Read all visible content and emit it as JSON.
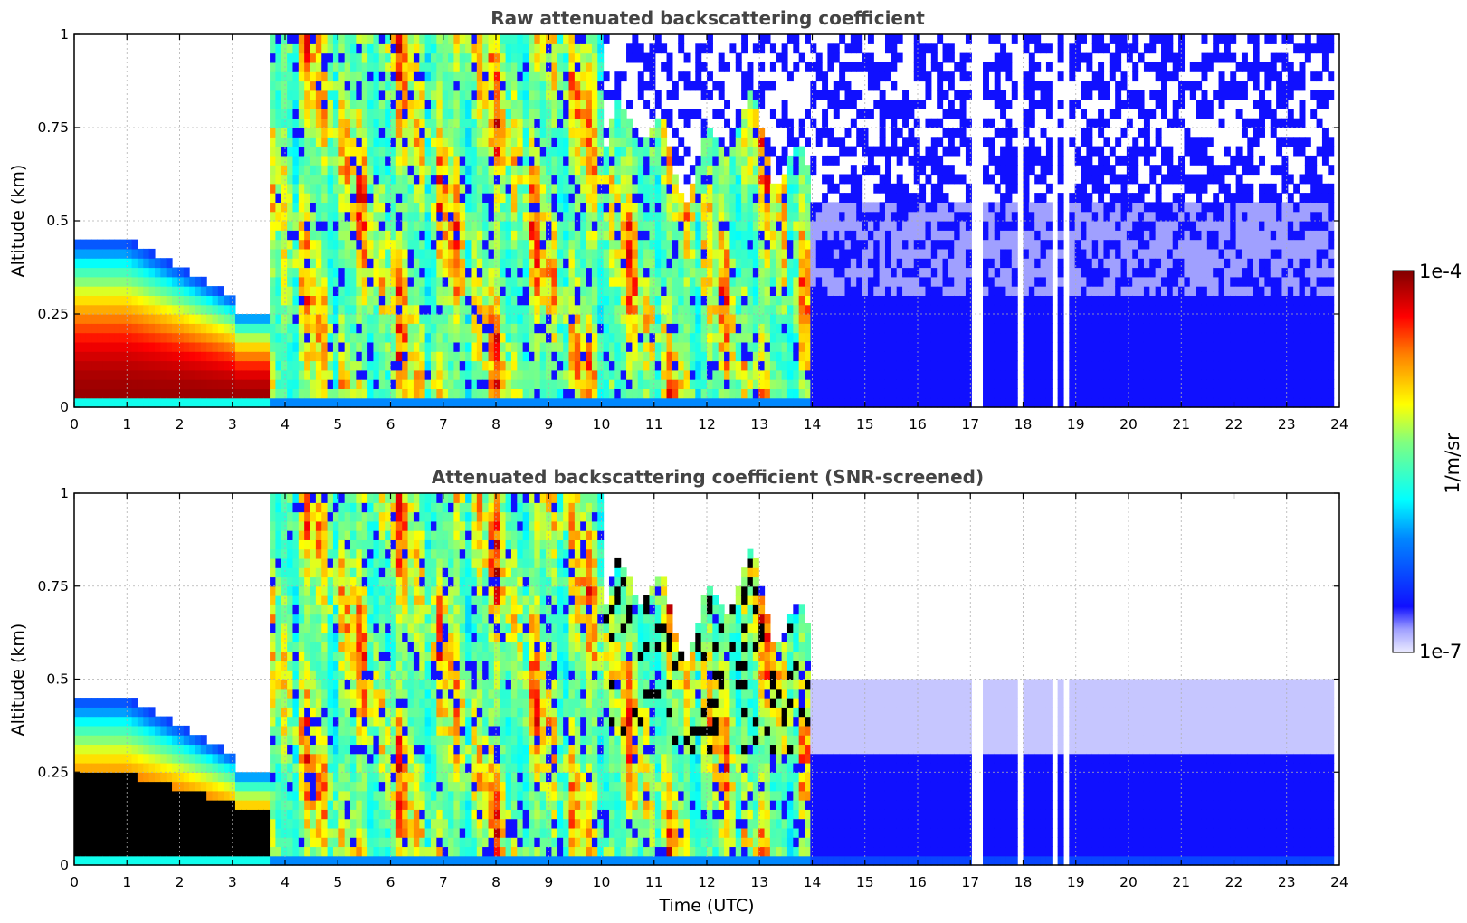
{
  "chart_data": [
    {
      "type": "heatmap",
      "title": "Raw attenuated backscattering coefficient",
      "xlabel": "",
      "ylabel": "Altitude (km)",
      "xlim": [
        0,
        24
      ],
      "ylim": [
        0,
        1
      ],
      "xticks": [
        0,
        1,
        2,
        3,
        4,
        5,
        6,
        7,
        8,
        9,
        10,
        11,
        12,
        13,
        14,
        15,
        16,
        17,
        18,
        19,
        20,
        21,
        22,
        23,
        24
      ],
      "yticks": [
        0,
        0.25,
        0.5,
        0.75,
        1
      ],
      "ytick_labels": [
        "0",
        "0.25",
        "0.5",
        "0.75",
        "1"
      ],
      "grid": true,
      "segments": [
        {
          "t0": 0.0,
          "t1": 3.7,
          "regime": "low_layer",
          "top": 0.45
        },
        {
          "t0": 3.7,
          "t1": 7.0,
          "regime": "cloud"
        },
        {
          "t0": 7.0,
          "t1": 10.0,
          "regime": "cloud"
        },
        {
          "t0": 10.0,
          "t1": 12.5,
          "regime": "cloud"
        },
        {
          "t0": 12.5,
          "t1": 14.0,
          "regime": "cloud"
        },
        {
          "t0": 14.0,
          "t1": 23.85,
          "regime": "clear_noise"
        }
      ],
      "gaps": [
        [
          17.05,
          17.2
        ],
        [
          17.85,
          17.95
        ],
        [
          18.55,
          18.65
        ],
        [
          18.75,
          18.85
        ]
      ]
    },
    {
      "type": "heatmap",
      "title": "Attenuated backscattering coefficient (SNR-screened)",
      "xlabel": "Time (UTC)",
      "ylabel": "Altitude (km)",
      "xlim": [
        0,
        24
      ],
      "ylim": [
        0,
        1
      ],
      "xticks": [
        0,
        1,
        2,
        3,
        4,
        5,
        6,
        7,
        8,
        9,
        10,
        11,
        12,
        13,
        14,
        15,
        16,
        17,
        18,
        19,
        20,
        21,
        22,
        23,
        24
      ],
      "yticks": [
        0,
        0.25,
        0.5,
        0.75,
        1
      ],
      "ytick_labels": [
        "0",
        "0.25",
        "0.5",
        "0.75",
        "1"
      ],
      "grid": true,
      "segments": [
        {
          "t0": 0.0,
          "t1": 3.7,
          "regime": "low_layer_saturated",
          "top": 0.45
        },
        {
          "t0": 3.7,
          "t1": 14.0,
          "regime": "cloud_screened"
        },
        {
          "t0": 14.0,
          "t1": 23.85,
          "regime": "clear_screened"
        }
      ],
      "gaps": [
        [
          17.05,
          17.2
        ],
        [
          17.85,
          17.95
        ],
        [
          18.55,
          18.65
        ],
        [
          18.75,
          18.85
        ]
      ]
    }
  ],
  "colorbar": {
    "label": "1/m/sr",
    "max_label": "1e-4",
    "min_label": "1e-7",
    "range": [
      1e-07,
      0.0001
    ],
    "scale": "log",
    "colormap": "jet",
    "colors": [
      "#e8e8ff",
      "#0000ff",
      "#00ffff",
      "#ffff00",
      "#ff0000",
      "#800000"
    ]
  }
}
